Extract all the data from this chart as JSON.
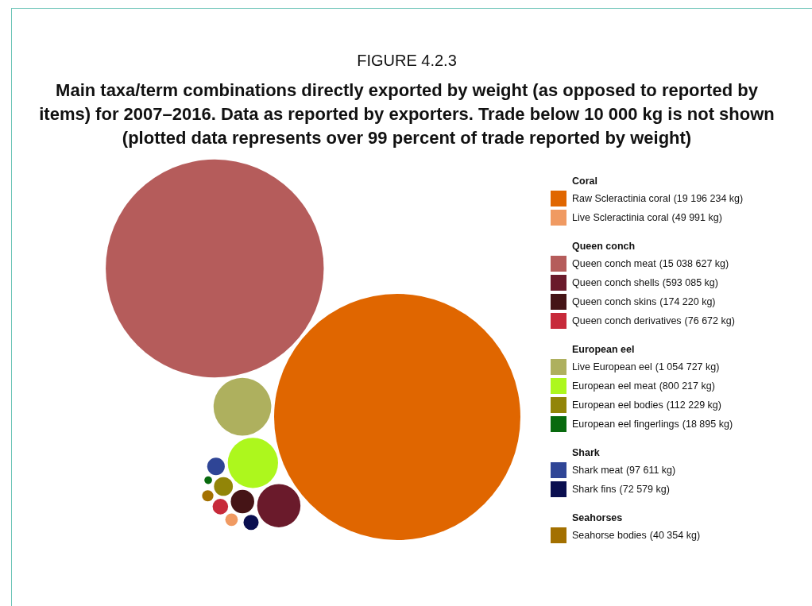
{
  "chart_data": {
    "type": "other",
    "title": "FIGURE 4.2.3",
    "subtitle": "Main taxa/term combinations directly exported by weight (as opposed to reported by items) for 2007–2016. Data as reported by exporters. Trade below 10 000 kg is not shown (plotted data represents over 99 percent of trade reported by weight)",
    "categories": [
      "Raw Scleractinia coral",
      "Live Scleractinia coral",
      "Queen conch meat",
      "Queen conch shells",
      "Queen conch skins",
      "Queen conch derivatives",
      "Live European eel",
      "European eel meat",
      "European eel bodies",
      "European eel fingerlings",
      "Shark meat",
      "Shark fins",
      "Seahorse bodies"
    ],
    "series": [
      {
        "name": "Coral",
        "values": [
          19196234,
          49991,
          null,
          null,
          null,
          null,
          null,
          null,
          null,
          null,
          null,
          null,
          null
        ],
        "colors": [
          "#e06600",
          "#f09a62",
          null,
          null,
          null,
          null,
          null,
          null,
          null,
          null,
          null,
          null,
          null
        ],
        "value_labels": [
          "(19 196 234 kg)",
          "(49 991 kg)",
          null,
          null,
          null,
          null,
          null,
          null,
          null,
          null,
          null,
          null,
          null
        ]
      },
      {
        "name": "Queen conch",
        "values": [
          null,
          null,
          15038627,
          593085,
          174220,
          76672,
          null,
          null,
          null,
          null,
          null,
          null,
          null
        ],
        "colors": [
          null,
          null,
          "#b55c5b",
          "#6a1a2b",
          "#451416",
          "#c72a3a",
          null,
          null,
          null,
          null,
          null,
          null,
          null
        ],
        "value_labels": [
          null,
          null,
          "(15 038 627 kg)",
          "(593 085 kg)",
          "(174 220 kg)",
          "(76 672 kg)",
          null,
          null,
          null,
          null,
          null,
          null,
          null
        ]
      },
      {
        "name": "European eel",
        "values": [
          null,
          null,
          null,
          null,
          null,
          null,
          1054727,
          800217,
          112229,
          18895,
          null,
          null,
          null
        ],
        "colors": [
          null,
          null,
          null,
          null,
          null,
          null,
          "#aeb05e",
          "#adf71d",
          "#928508",
          "#086a0e",
          null,
          null,
          null
        ],
        "value_labels": [
          null,
          null,
          null,
          null,
          null,
          null,
          "(1 054 727 kg)",
          "(800 217 kg)",
          "(112 229 kg)",
          "(18 895 kg)",
          null,
          null,
          null
        ]
      },
      {
        "name": "Shark",
        "values": [
          null,
          null,
          null,
          null,
          null,
          null,
          null,
          null,
          null,
          null,
          97611,
          72579,
          null
        ],
        "colors": [
          null,
          null,
          null,
          null,
          null,
          null,
          null,
          null,
          null,
          null,
          "#2f4596",
          "#0a0f50",
          null
        ],
        "value_labels": [
          null,
          null,
          null,
          null,
          null,
          null,
          null,
          null,
          null,
          null,
          "(97 611 kg)",
          "(72 579 kg)",
          null
        ]
      },
      {
        "name": "Seahorses",
        "values": [
          null,
          null,
          null,
          null,
          null,
          null,
          null,
          null,
          null,
          null,
          null,
          null,
          40354
        ],
        "colors": [
          null,
          null,
          null,
          null,
          null,
          null,
          null,
          null,
          null,
          null,
          null,
          null,
          "#a37000"
        ],
        "value_labels": [
          null,
          null,
          null,
          null,
          null,
          null,
          null,
          null,
          null,
          null,
          null,
          null,
          "(40 354 kg)"
        ]
      }
    ]
  }
}
